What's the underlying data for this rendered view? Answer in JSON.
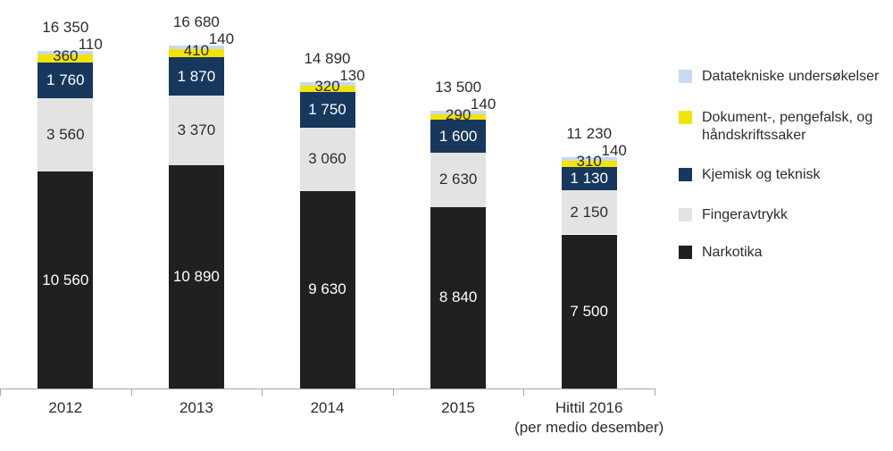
{
  "chart_data": {
    "type": "bar",
    "stacked": true,
    "orientation": "vertical",
    "grid": false,
    "legend_position": "right",
    "categories": [
      "2012",
      "2013",
      "2014",
      "2015",
      "Hittil 2016\n(per medio desember)"
    ],
    "totals": [
      16350,
      16680,
      14890,
      13500,
      11230
    ],
    "totals_display": [
      "16 350",
      "16 680",
      "14 890",
      "13 500",
      "11 230"
    ],
    "series": [
      {
        "key": "narkotika",
        "name": "Narkotika",
        "color": "#221f1f",
        "values": [
          10560,
          10890,
          9630,
          8840,
          7500
        ],
        "labels": [
          "10 560",
          "10 890",
          "9 630",
          "8 840",
          "7 500"
        ],
        "label_color": "#ffffff",
        "label_placement": "inside"
      },
      {
        "key": "fingeravtrykk",
        "name": "Fingeravtrykk",
        "color": "#e3e3e3",
        "values": [
          3560,
          3370,
          3060,
          2630,
          2150
        ],
        "labels": [
          "3 560",
          "3 370",
          "3 060",
          "2 630",
          "2 150"
        ],
        "label_color": "#2e2c2c",
        "label_placement": "inside"
      },
      {
        "key": "kjemisk-og-teknisk",
        "name": "Kjemisk og teknisk",
        "color": "#17375d",
        "values": [
          1760,
          1870,
          1750,
          1600,
          1130
        ],
        "labels": [
          "1 760",
          "1 870",
          "1 750",
          "1 600",
          "1 130"
        ],
        "label_color": "#ffffff",
        "label_placement": "inside"
      },
      {
        "key": "dokument-pengefalsk",
        "name": "Dokument-, pengefalsk, og håndskriftssaker",
        "color": "#f2e40b",
        "values": [
          360,
          410,
          320,
          290,
          310
        ],
        "labels": [
          "360",
          "410",
          "320",
          "290",
          "310"
        ],
        "label_color": "#2e2c2c",
        "label_placement": "overlay-center"
      },
      {
        "key": "datatekniske",
        "name": "Datatekniske undersøkelser",
        "color": "#c9d9ef",
        "values": [
          110,
          140,
          130,
          140,
          140
        ],
        "labels": [
          "110",
          "140",
          "130",
          "140",
          "140"
        ],
        "label_color": "#2e2c2c",
        "label_placement": "above-right"
      }
    ],
    "legend": [
      {
        "label": "Datatekniske undersøkelser",
        "color": "#c9d9ef"
      },
      {
        "label": "Dokument-, pengefalsk, og håndskriftssaker",
        "color": "#f2e40b"
      },
      {
        "label": "Kjemisk og teknisk",
        "color": "#17375d"
      },
      {
        "label": "Fingeravtrykk",
        "color": "#e3e3e3"
      },
      {
        "label": "Narkotika",
        "color": "#221f1f"
      }
    ]
  }
}
